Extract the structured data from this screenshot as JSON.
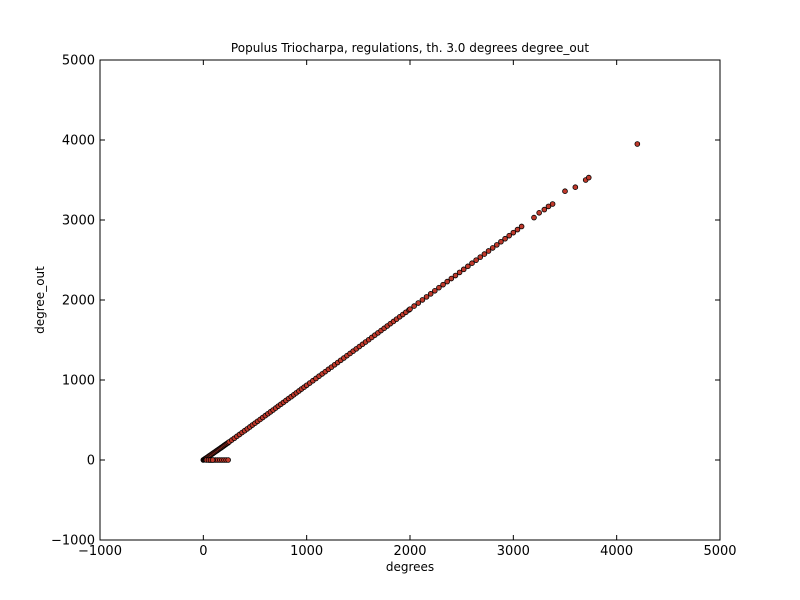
{
  "chart_data": {
    "type": "scatter",
    "title": "Populus Triocharpa, regulations, th. 3.0 degrees degree_out",
    "xlabel": "degrees",
    "ylabel": "degree_out",
    "xlim": [
      -1000,
      5000
    ],
    "ylim": [
      -1000,
      5000
    ],
    "xticks": [
      -1000,
      0,
      1000,
      2000,
      3000,
      4000,
      5000
    ],
    "yticks": [
      -1000,
      0,
      1000,
      2000,
      3000,
      4000,
      5000
    ],
    "xtick_labels": [
      "−1000",
      "0",
      "1000",
      "2000",
      "3000",
      "4000",
      "5000"
    ],
    "ytick_labels": [
      "−1000",
      "0",
      "1000",
      "2000",
      "3000",
      "4000",
      "5000"
    ],
    "grid": false,
    "legend": "none",
    "marker_color": "#c0392b",
    "marker_edge_color": "#000000",
    "series": [
      {
        "x": [
          0,
          5,
          10,
          15,
          20,
          25,
          30,
          40,
          50,
          60,
          70,
          80,
          90,
          100,
          110,
          120,
          130,
          140,
          150,
          160,
          170,
          180,
          190,
          200,
          210,
          220,
          230,
          240,
          250,
          275,
          300,
          325,
          350,
          375,
          400,
          425,
          450,
          475,
          500,
          525,
          550,
          575,
          600,
          625,
          650,
          675,
          700,
          725,
          750,
          775,
          800,
          825,
          850,
          875,
          900,
          925,
          950,
          975,
          1000,
          1030,
          1060,
          1090,
          1120,
          1150,
          1180,
          1210,
          1240,
          1270,
          1300,
          1330,
          1360,
          1390,
          1420,
          1450,
          1480,
          1510,
          1540,
          1570,
          1600,
          1630,
          1660,
          1690,
          1720,
          1750,
          1780,
          1810,
          1840,
          1870,
          1900,
          1930,
          1960,
          1990,
          2000,
          2040,
          2080,
          2120,
          2160,
          2200,
          2240,
          2280,
          2320,
          2360,
          2400,
          2440,
          2480,
          2520,
          2560,
          2600,
          2640,
          2680,
          2720,
          2760,
          2800,
          2840,
          2880,
          2920,
          2960,
          3000,
          3040,
          3080,
          3200,
          3250,
          3300,
          3340,
          3380,
          3500,
          3600,
          3700,
          3730,
          4200,
          60,
          80,
          100,
          120,
          140,
          160,
          180,
          200,
          220,
          240,
          30,
          50,
          70,
          90
        ],
        "y": [
          0,
          3,
          8,
          12,
          17,
          21,
          26,
          35,
          44,
          53,
          62,
          71,
          80,
          89,
          98,
          107,
          116,
          125,
          134,
          143,
          152,
          161,
          170,
          180,
          189,
          198,
          207,
          216,
          226,
          249,
          272,
          296,
          319,
          343,
          366,
          389,
          413,
          437,
          460,
          484,
          507,
          531,
          555,
          578,
          602,
          625,
          649,
          673,
          697,
          720,
          744,
          768,
          791,
          815,
          839,
          863,
          887,
          910,
          934,
          962,
          991,
          1019,
          1048,
          1076,
          1104,
          1133,
          1161,
          1190,
          1218,
          1247,
          1275,
          1304,
          1332,
          1361,
          1389,
          1418,
          1446,
          1475,
          1503,
          1532,
          1561,
          1589,
          1618,
          1646,
          1675,
          1704,
          1732,
          1761,
          1790,
          1818,
          1847,
          1876,
          1886,
          1924,
          1962,
          2001,
          2039,
          2077,
          2115,
          2154,
          2192,
          2230,
          2268,
          2306,
          2345,
          2383,
          2421,
          2460,
          2498,
          2536,
          2574,
          2613,
          2651,
          2689,
          2728,
          2766,
          2804,
          2842,
          2880,
          2919,
          3030,
          3090,
          3130,
          3170,
          3200,
          3360,
          3410,
          3500,
          3530,
          3950,
          0,
          0,
          0,
          0,
          0,
          0,
          0,
          0,
          0,
          0,
          0,
          0,
          0,
          0
        ]
      }
    ]
  }
}
